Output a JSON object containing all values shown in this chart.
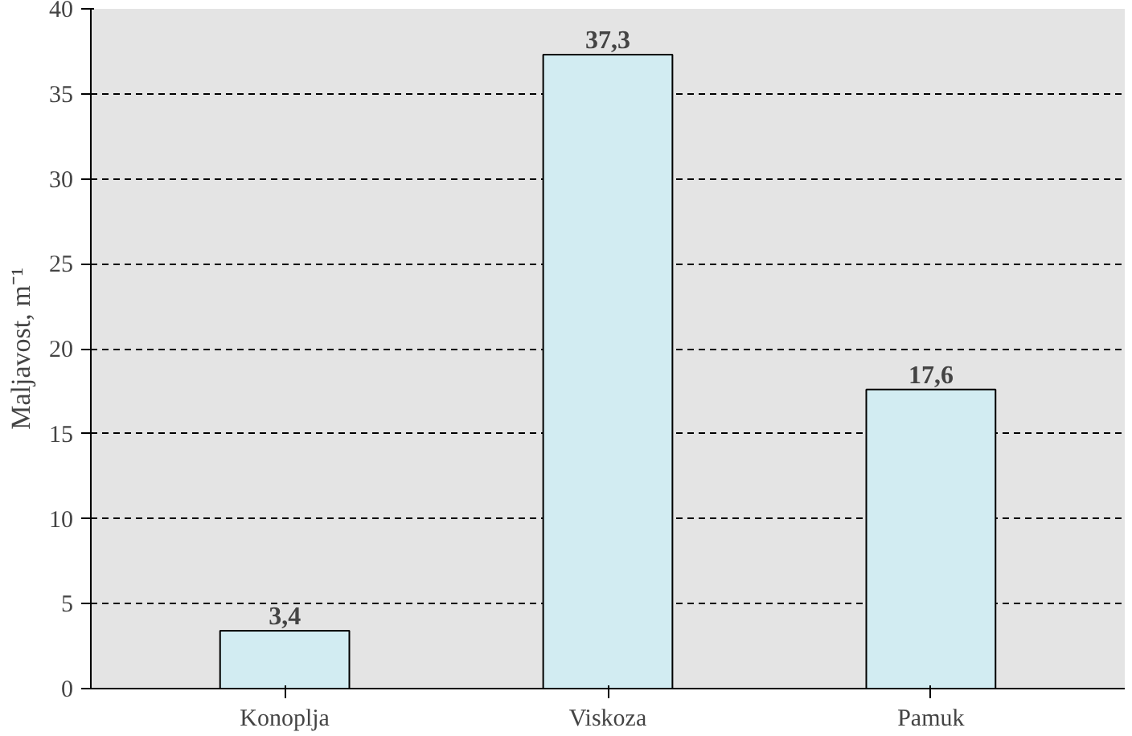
{
  "chart_data": {
    "type": "bar",
    "ylabel": "Maljavost, m⁻¹",
    "categories": [
      "Konoplja",
      "Viskoza",
      "Pamuk"
    ],
    "values": [
      3.4,
      37.3,
      17.6
    ],
    "value_labels": [
      "3,4",
      "37,3",
      "17,6"
    ],
    "color": "#d2ecf2",
    "ylim": [
      0,
      40
    ],
    "yticks": [
      0,
      5,
      10,
      15,
      20,
      25,
      30,
      35,
      40
    ],
    "grid": "y",
    "line_style": "dashed"
  }
}
